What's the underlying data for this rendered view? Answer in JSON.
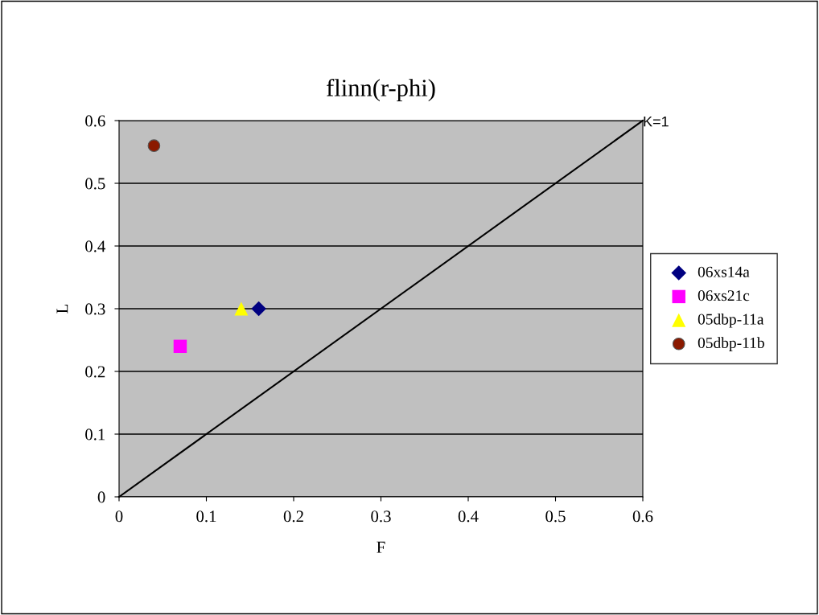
{
  "chart_data": {
    "type": "scatter",
    "title": "flinn(r-phi)",
    "xlabel": "F",
    "ylabel": "L",
    "xlim": [
      0,
      0.6
    ],
    "ylim": [
      0,
      0.6
    ],
    "xticks": [
      0,
      0.1,
      0.2,
      0.3,
      0.4,
      0.5,
      0.6
    ],
    "yticks": [
      0,
      0.1,
      0.2,
      0.3,
      0.4,
      0.5,
      0.6
    ],
    "grid": "y",
    "legend": "right",
    "series": [
      {
        "name": "06xs14a",
        "color": "#000080",
        "marker": "diamond",
        "x": [
          0.16
        ],
        "values": [
          0.3
        ]
      },
      {
        "name": "06xs21c",
        "color": "#ff00ff",
        "marker": "square",
        "x": [
          0.07
        ],
        "values": [
          0.24
        ]
      },
      {
        "name": "05dbp-11a",
        "color": "#ffff00",
        "marker": "triangle",
        "x": [
          0.14
        ],
        "values": [
          0.3
        ]
      },
      {
        "name": "05dbp-11b",
        "color": "#8b1a00",
        "marker": "circle",
        "x": [
          0.04
        ],
        "values": [
          0.56
        ]
      },
      {
        "type": "line",
        "color": "#000000",
        "marker": "none",
        "line_style": "solid",
        "x": [
          0,
          0.6
        ],
        "values": [
          0,
          0.6
        ]
      }
    ],
    "annotations": [
      {
        "text": "K=1",
        "x": 0.6,
        "y": 0.6
      }
    ]
  }
}
